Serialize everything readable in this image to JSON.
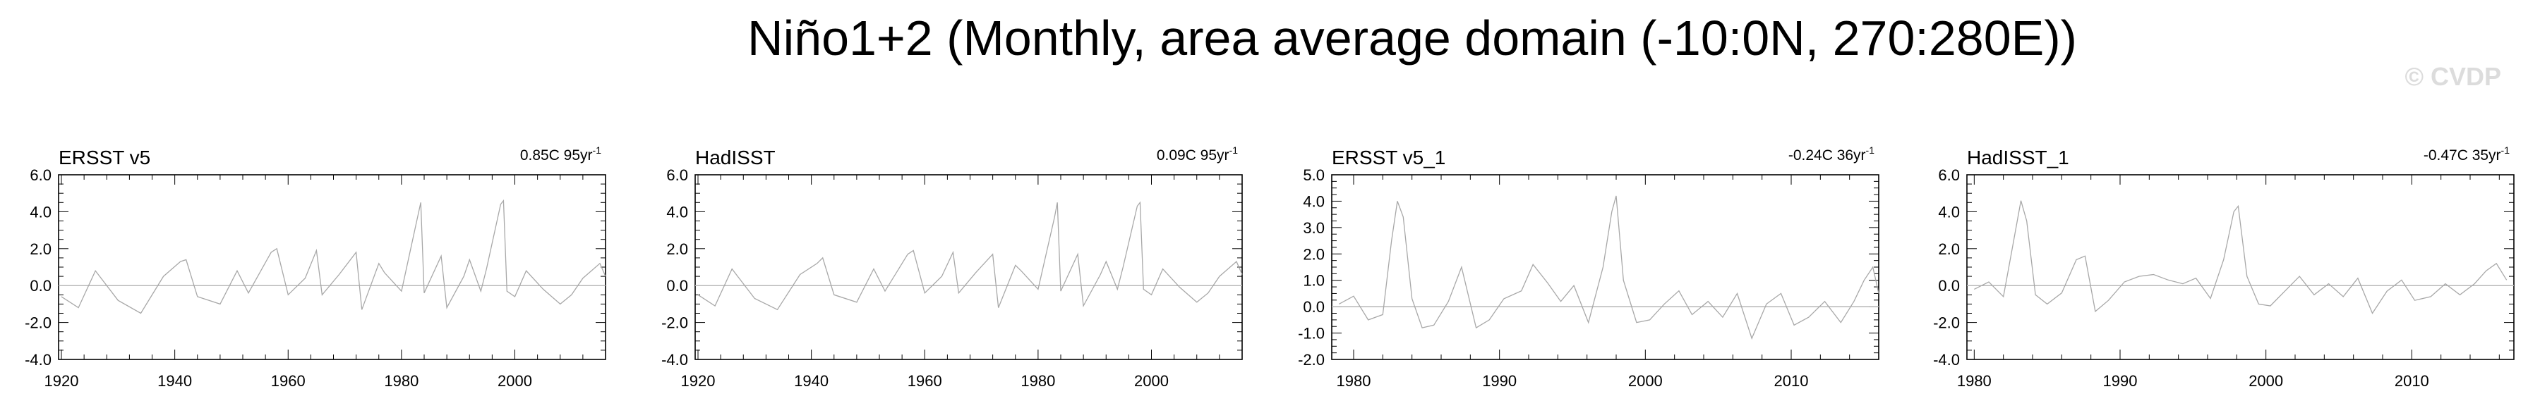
{
  "title": "Niño1+2 (Monthly, area average domain (-10:0N, 270:280E))",
  "watermark": "© CVDP",
  "colors": {
    "series": "#a8a8a8",
    "zero_line": "#b8b8b8",
    "axis": "#000000"
  },
  "chart_data": [
    {
      "type": "line",
      "name": "ERSST v5",
      "trend_label": "0.85C 95yr",
      "trend_sup": "-1",
      "xlim": [
        1919.5,
        2016.0
      ],
      "ylim": [
        -4.0,
        6.0
      ],
      "yticks": [
        "-4.0",
        "-2.0",
        "0.0",
        "2.0",
        "4.0",
        "6.0"
      ],
      "ytick_values": [
        -4,
        -2,
        0,
        2,
        4,
        6
      ],
      "xticks": [
        "1920",
        "1940",
        "1960",
        "1980",
        "2000"
      ],
      "xtick_values": [
        1920,
        1940,
        1960,
        1980,
        2000
      ],
      "series": [
        {
          "x": [
            1920,
            1923,
            1926,
            1930,
            1934,
            1938,
            1941,
            1942,
            1944,
            1948,
            1951,
            1953,
            1957,
            1958,
            1960,
            1963,
            1965,
            1966,
            1969,
            1972,
            1973,
            1976,
            1977,
            1980,
            1982.9,
            1983.4,
            1984,
            1987,
            1988,
            1991,
            1992,
            1994,
            1995,
            1997.5,
            1998,
            1998.6,
            2000,
            2002,
            2005,
            2008,
            2010,
            2012,
            2015,
            2016
          ],
          "y": [
            -0.6,
            -1.2,
            0.8,
            -0.8,
            -1.5,
            0.5,
            1.3,
            1.4,
            -0.6,
            -1.0,
            0.8,
            -0.4,
            1.8,
            2.0,
            -0.5,
            0.4,
            1.9,
            -0.5,
            0.6,
            1.8,
            -1.3,
            1.2,
            0.7,
            -0.3,
            3.8,
            4.5,
            -0.4,
            1.6,
            -1.2,
            0.5,
            1.4,
            -0.3,
            0.9,
            4.4,
            4.6,
            -0.3,
            -0.6,
            0.8,
            -0.2,
            -1.0,
            -0.5,
            0.4,
            1.2,
            0.5
          ]
        }
      ]
    },
    {
      "type": "line",
      "name": "HadISST",
      "trend_label": "0.09C 95yr",
      "trend_sup": "-1",
      "xlim": [
        1919.5,
        2016.0
      ],
      "ylim": [
        -4.0,
        6.0
      ],
      "yticks": [
        "-4.0",
        "-2.0",
        "0.0",
        "2.0",
        "4.0",
        "6.0"
      ],
      "ytick_values": [
        -4,
        -2,
        0,
        2,
        4,
        6
      ],
      "xticks": [
        "1920",
        "1940",
        "1960",
        "1980",
        "2000"
      ],
      "xtick_values": [
        1920,
        1940,
        1960,
        1980,
        2000
      ],
      "series": [
        {
          "x": [
            1920,
            1923,
            1926,
            1930,
            1934,
            1938,
            1941,
            1942,
            1944,
            1948,
            1951,
            1953,
            1957,
            1958,
            1960,
            1963,
            1965,
            1966,
            1969,
            1972,
            1973,
            1976,
            1977,
            1980,
            1982.9,
            1983.4,
            1984,
            1987,
            1988,
            1991,
            1992,
            1994,
            1995,
            1997.5,
            1998,
            1998.6,
            2000,
            2002,
            2005,
            2008,
            2010,
            2012,
            2015,
            2016
          ],
          "y": [
            -0.5,
            -1.1,
            0.9,
            -0.7,
            -1.3,
            0.6,
            1.2,
            1.5,
            -0.5,
            -0.9,
            0.9,
            -0.3,
            1.7,
            1.9,
            -0.4,
            0.5,
            1.8,
            -0.4,
            0.7,
            1.7,
            -1.2,
            1.1,
            0.8,
            -0.2,
            3.7,
            4.5,
            -0.3,
            1.7,
            -1.1,
            0.6,
            1.3,
            -0.2,
            1.0,
            4.3,
            4.5,
            -0.2,
            -0.5,
            0.9,
            -0.1,
            -0.9,
            -0.4,
            0.5,
            1.3,
            0.6
          ]
        }
      ]
    },
    {
      "type": "line",
      "name": "ERSST v5_1",
      "trend_label": "-0.24C 36yr",
      "trend_sup": "-1",
      "xlim": [
        1978.5,
        2016.0
      ],
      "ylim": [
        -2.0,
        5.0
      ],
      "yticks": [
        "-2.0",
        "-1.0",
        "0.0",
        "1.0",
        "2.0",
        "3.0",
        "4.0",
        "5.0"
      ],
      "ytick_values": [
        -2,
        -1,
        0,
        1,
        2,
        3,
        4,
        5
      ],
      "xticks": [
        "1980",
        "1990",
        "2000",
        "2010"
      ],
      "xtick_values": [
        1980,
        1990,
        2000,
        2010
      ],
      "series": [
        {
          "x": [
            1979,
            1980,
            1981,
            1982,
            1982.6,
            1983,
            1983.4,
            1984,
            1984.7,
            1985.5,
            1986.5,
            1987.4,
            1988.4,
            1989.3,
            1990.3,
            1991.5,
            1992.3,
            1993.3,
            1994.2,
            1995.1,
            1996.1,
            1997.1,
            1997.7,
            1998,
            1998.5,
            1999.4,
            2000.3,
            2001.3,
            2002.3,
            2003.2,
            2004.3,
            2005.3,
            2006.3,
            2007.3,
            2008.3,
            2009.3,
            2010.2,
            2011.2,
            2012.3,
            2013.4,
            2014.3,
            2015,
            2015.6,
            2016
          ],
          "y": [
            0.1,
            0.4,
            -0.5,
            -0.3,
            2.5,
            4.0,
            3.4,
            0.3,
            -0.8,
            -0.7,
            0.2,
            1.5,
            -0.8,
            -0.5,
            0.3,
            0.6,
            1.6,
            0.9,
            0.2,
            0.8,
            -0.6,
            1.5,
            3.6,
            4.2,
            1.0,
            -0.6,
            -0.5,
            0.1,
            0.6,
            -0.3,
            0.2,
            -0.4,
            0.5,
            -1.2,
            0.1,
            0.5,
            -0.7,
            -0.4,
            0.2,
            -0.6,
            0.2,
            1.0,
            1.5,
            0.5
          ]
        }
      ]
    },
    {
      "type": "line",
      "name": "HadISST_1",
      "trend_label": "-0.47C 35yr",
      "trend_sup": "-1",
      "xlim": [
        1979.5,
        2017.0
      ],
      "ylim": [
        -4.0,
        6.0
      ],
      "yticks": [
        "-4.0",
        "-2.0",
        "0.0",
        "2.0",
        "4.0",
        "6.0"
      ],
      "ytick_values": [
        -4,
        -2,
        0,
        2,
        4,
        6
      ],
      "xticks": [
        "1980",
        "1990",
        "2000",
        "2010"
      ],
      "xtick_values": [
        1980,
        1990,
        2000,
        2010
      ],
      "series": [
        {
          "x": [
            1980,
            1981,
            1982,
            1982.7,
            1983.2,
            1983.6,
            1984.2,
            1985,
            1986,
            1987,
            1987.6,
            1988.3,
            1989.2,
            1990.3,
            1991.3,
            1992.3,
            1993.3,
            1994.3,
            1995.2,
            1996.2,
            1997.1,
            1997.8,
            1998.1,
            1998.7,
            1999.5,
            2000.3,
            2001.3,
            2002.3,
            2003.3,
            2004.3,
            2005.3,
            2006.3,
            2007.3,
            2008.3,
            2009.3,
            2010.2,
            2011.3,
            2012.3,
            2013.3,
            2014.3,
            2015.1,
            2015.8,
            2016.5
          ],
          "y": [
            -0.2,
            0.2,
            -0.6,
            2.4,
            4.6,
            3.5,
            -0.5,
            -1.0,
            -0.4,
            1.4,
            1.6,
            -1.4,
            -0.8,
            0.2,
            0.5,
            0.6,
            0.3,
            0.1,
            0.4,
            -0.7,
            1.4,
            4.0,
            4.3,
            0.5,
            -1.0,
            -1.1,
            -0.3,
            0.5,
            -0.5,
            0.1,
            -0.6,
            0.4,
            -1.5,
            -0.3,
            0.3,
            -0.8,
            -0.6,
            0.1,
            -0.5,
            0.1,
            0.8,
            1.2,
            0.3
          ]
        }
      ]
    }
  ]
}
